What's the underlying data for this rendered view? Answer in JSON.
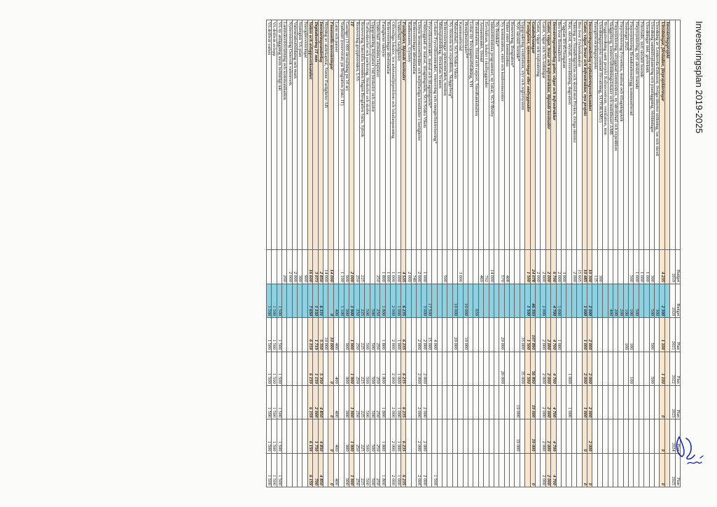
{
  "title": "Investeringsplan 2019-2025",
  "columns": [
    {
      "top": "",
      "bottom": ""
    },
    {
      "top": "Budget",
      "bottom": "2019"
    },
    {
      "top": "Budget",
      "bottom": "2020"
    },
    {
      "top": "Plan",
      "bottom": "2021"
    },
    {
      "top": "Plan",
      "bottom": "2022"
    },
    {
      "top": "Plan",
      "bottom": "2023"
    },
    {
      "top": "Plan",
      "bottom": "2024"
    },
    {
      "top": "Plan",
      "bottom": "2025"
    }
  ],
  "highlight_column": 2,
  "rows": [
    {
      "label": "Investeringsprojekt",
      "values": [
        "",
        "",
        "",
        "",
        "",
        "",
        ""
      ],
      "bold": true
    },
    {
      "label": "Utredningar, förstudier, förprojekteringar",
      "values": [
        "4 235",
        "2 300",
        "1 100",
        "1 100",
        "0",
        "0",
        "0"
      ],
      "bold": true
    },
    {
      "label": "Utredning av Lenhovda-Eriksson, övriga tätorter utökning, tas och skred",
      "values": [
        "",
        "300",
        "",
        "",
        "",
        "",
        ""
      ]
    },
    {
      "label": "Utredning samhällsplanering och planläggning, förtätningar",
      "values": [
        "300",
        "500",
        "500",
        "500",
        "",
        "",
        ""
      ]
    },
    {
      "label": "Utredningar inkl. geoteknik",
      "values": [
        "1 000",
        "",
        "",
        "",
        "",
        "",
        ""
      ]
    },
    {
      "label": "Förstudie, nytt särskilt boende",
      "values": [
        "1 000",
        "",
        "",
        "",
        "",
        "",
        ""
      ]
    },
    {
      "label": "Förprojektering, nytt särskilt boende",
      "values": [
        "1 000",
        "500",
        "",
        "",
        "",
        "",
        ""
      ]
    },
    {
      "label": "Förprojektering Brandstationsbygg kommunförråd",
      "values": [
        "500",
        "100",
        "100",
        "100",
        "",
        "",
        ""
      ]
    },
    {
      "label": "Stortorget 2025",
      "values": [
        "",
        "100",
        "100",
        "",
        "",
        "",
        ""
      ]
    },
    {
      "label": "Förprojektering Frysotikla, mattsal och tillagningskök",
      "values": [
        "",
        "200",
        "",
        "",
        "",
        "",
        ""
      ]
    },
    {
      "label": "Förprojektering, ullyggnad kommunhus, ny idrottshall och expedition",
      "values": [
        "",
        "200",
        "",
        "",
        "",
        "",
        ""
      ]
    },
    {
      "label": "Skäggeberg, kontors/utbildningslokaler och mobilhuset AME",
      "values": [
        "",
        "400",
        "",
        "",
        "",
        "",
        ""
      ]
    },
    {
      "label": "Bryggutredning samt projekt Kulturcentrum, ventilation, mm",
      "values": [
        "",
        "",
        "",
        "",
        "",
        "",
        ""
      ]
    },
    {
      "label": "Utredningsprojekt (samlad förvaltning, SUTORAMU)",
      "values": [
        "300",
        "",
        "",
        "",
        "",
        "",
        ""
      ]
    },
    {
      "label": "Energiförsörjningsprojekt",
      "values": [
        "135",
        "",
        "",
        "",
        "",
        "",
        ""
      ]
    },
    {
      "label": "Investeringsunderlag exploateringsverksamhet",
      "values": [
        "10 300",
        "2 000",
        "2 000",
        "2 000",
        "2 000",
        "2 000",
        "0"
      ],
      "bold": true
    },
    {
      "label": "Gator, vägar, broar och infrastruktur, nya projekt",
      "values": [
        "10 485",
        "1 000",
        "1 000",
        "2 000",
        "1 000",
        "0",
        "0"
      ],
      "bold": true
    },
    {
      "label": "Bro över Frykenkanalen",
      "values": [
        "15 605",
        "",
        "",
        "",
        "",
        "",
        ""
      ]
    },
    {
      "label": "Säkring av Strandvägen/fas och skred mot Fryken, övriga tätorter",
      "values": [
        "2 000",
        "",
        "",
        "",
        "",
        "",
        ""
      ]
    },
    {
      "label": "Ras, skred, skyfall, översvämning, dagvatten",
      "values": [
        "",
        "",
        "",
        "1 000",
        "1 000",
        "",
        ""
      ]
    },
    {
      "label": "Vägplan RV45/Storgatan",
      "values": [
        "3 000",
        "",
        "",
        "",
        "",
        "",
        ""
      ]
    },
    {
      "label": "Bro över Rottnaälven",
      "values": [
        "2 000",
        "1 000",
        "1 000",
        "",
        "",
        "",
        ""
      ]
    },
    {
      "label": "Investeringsunderlag gator, vägar och infrastruktur",
      "values": [
        "6 700",
        "4 700",
        "4 700",
        "4 700",
        "4 700",
        "4 700",
        "4 700"
      ],
      "bold": true
    },
    {
      "label": "Gator, vägar, broar och infrastruktur, löpande kostnader",
      "values": [
        "2 000",
        "",
        "2 000",
        "2 000",
        "2 000",
        "2 000",
        "2 000"
      ],
      "bold": true
    },
    {
      "label": "Gator, vägar och VA-ledningar",
      "values": [
        "2 000",
        "2 000",
        "2 000",
        "2 000",
        "2 000",
        "2 000",
        "2 000"
      ]
    },
    {
      "label": "Gator, vägar och exploatering",
      "values": [
        "2 000",
        "",
        "",
        "",
        "",
        "",
        ""
      ]
    },
    {
      "label": "Gatubelysningar",
      "values": [
        "24 078",
        "46 393",
        "107 890",
        "56 890",
        "19 000",
        "19 000",
        "0"
      ],
      "bold": true
    },
    {
      "label": "Fastigheter, nyinvesteringar eller ombyggnader",
      "values": [
        "1 500",
        "1 500",
        "1 500",
        "1 500",
        "",
        "",
        ""
      ],
      "bold": true
    },
    {
      "label": "Uppgradering ventilation, styr och reglersystem",
      "values": [
        "",
        "",
        "35 000",
        "35 000",
        "",
        "",
        ""
      ]
    },
    {
      "label": "Nytt särskilt boende*",
      "values": [
        "",
        "",
        "",
        "",
        "19 000",
        "19 000",
        ""
      ]
    },
    {
      "label": "Renovering, Broglatten*",
      "values": [
        "",
        "",
        "",
        "",
        "",
        "",
        ""
      ]
    },
    {
      "label": "Säker entré kommunhus",
      "values": [
        "408",
        "",
        "",
        "",
        "",
        "",
        ""
      ]
    },
    {
      "label": "Ny kommunhus, entré och konferenscenter",
      "values": [
        "570",
        "",
        "20 000",
        "20 000",
        "",
        "",
        ""
      ]
    },
    {
      "label": "Ny Bondsäs*",
      "values": [
        "",
        "",
        "",
        "",
        "",
        "",
        ""
      ]
    },
    {
      "label": "Industritekniska programmet, ny lokal, SGY/Broby",
      "values": [
        "14 000",
        "",
        "",
        "",
        "",
        "",
        ""
      ]
    },
    {
      "label": "Elevhälsan, lokaler i skolbyggnader",
      "values": [
        "792",
        "",
        "",
        "",
        "",
        "",
        ""
      ]
    },
    {
      "label": "Arenaområdet, förråd",
      "values": [
        "469",
        "",
        "",
        "",
        "",
        "",
        ""
      ]
    },
    {
      "label": "Brandstation, förråd och carport, Smedbankshallen",
      "values": [
        "",
        "650",
        "",
        "",
        "",
        "",
        ""
      ]
    },
    {
      "label": "Lokal för Tolvgagnsutbildning, YH",
      "values": [
        "",
        "",
        "",
        "",
        "",
        "",
        ""
      ]
    },
    {
      "label": "Hemtjänstlokaler**",
      "values": [
        "",
        "10 000",
        "10 000",
        "",
        "",
        "",
        ""
      ]
    },
    {
      "label": "Kommunförråd",
      "values": [
        "3 000",
        "",
        "",
        "",
        "",
        "",
        ""
      ]
    },
    {
      "label": "Matsalshall, SGY/Södra Viken",
      "values": [
        "",
        "10 000",
        "20 000",
        "",
        "",
        "",
        ""
      ]
    },
    {
      "label": "Ny förskola och expedition, Skäggeberg*",
      "values": [
        "",
        "",
        "",
        "",
        "",
        "",
        ""
      ]
    },
    {
      "label": "Reinvesteringar sphemområden, motion",
      "values": [
        "500",
        "",
        "",
        "",
        "",
        "",
        ""
      ]
    },
    {
      "label": "Mötesplatsbidrag, förskolan Svanen",
      "values": [
        "",
        "",
        "",
        "",
        "",
        "",
        ""
      ]
    },
    {
      "label": "Lokaler Frycelikseområdet, renovering och energieffektivisering*",
      "values": [
        "",
        "",
        "4 000",
        "",
        "",
        "",
        "1 500"
      ]
    },
    {
      "label": "Frycelikseområdet, matsal och tillagningskök*",
      "values": [
        "",
        "17 500",
        "15 000",
        "",
        "",
        "",
        ""
      ]
    },
    {
      "label": "Ombyggnad av matsal, tillagningskök, SGY/Södra Viken",
      "values": [
        "1 000",
        "3 000",
        "2 000",
        "2 000",
        "2 000",
        "2 000",
        "2 000"
      ]
    },
    {
      "label": "Utbyte bromsomfördäm och miljöfarliga kemikalier i fastigheter",
      "values": [
        "2 000",
        "",
        "2 000",
        "2 000",
        "2 000",
        "2 000",
        "2 000"
      ]
    },
    {
      "label": "Reinvesteringar idrottshallar",
      "values": [
        "749",
        "",
        "",
        "",
        "",
        "",
        ""
      ]
    },
    {
      "label": "Rådhussalen, Gylleby",
      "values": [
        "2 000",
        "",
        "",
        "",
        "",
        "",
        ""
      ]
    },
    {
      "label": "Fastigheter, löpande kostnader",
      "values": [
        "4 535",
        "6 235",
        "6 235",
        "6 235",
        "6 235",
        "6 235",
        "6 235"
      ],
      "bold": true
    },
    {
      "label": "Underhåll fastigheter",
      "values": [
        "1 000",
        "1 000",
        "1 000",
        "1 000",
        "1 000",
        "1 000",
        "1 000"
      ]
    },
    {
      "label": "Offentliga lokaler, tex arbetsmiljöproblem och lokalanpassning",
      "values": [
        "1 000",
        "2 000",
        "2 000",
        "2 000",
        "2 000",
        "2 000",
        "2 000"
      ]
    },
    {
      "label": "Reinvesteringar idrottshallar",
      "values": [
        "1 000",
        "",
        "",
        "",
        "",
        "",
        ""
      ]
    },
    {
      "label": "Fastigheter takbyte",
      "values": [
        "1 800",
        "1 800",
        "1 800",
        "1 800",
        "1 800",
        "1 800",
        "1 800"
      ]
    },
    {
      "label": "Underhåll allmänna lekplatser",
      "values": [
        "250",
        "250",
        "250",
        "250",
        "250",
        "250",
        "250"
      ]
    },
    {
      "label": "Uppgradering lekplatser vid förskolor och skolor",
      "values": [
        "",
        "500",
        "500",
        "500",
        "500",
        "500",
        "500"
      ]
    },
    {
      "label": "Trafiksäkerhet och parkering, förskolor och skolor",
      "values": [
        "",
        "500",
        "500",
        "500",
        "500",
        "500",
        "500"
      ]
    },
    {
      "label": "Renovering Såkekilla boenden Hagen Broglatten Sälla, Sjövik",
      "values": [
        "225",
        "225",
        "225",
        "225",
        "225",
        "225",
        "225"
      ]
    },
    {
      "label": "Renovering gruppboenden, LSS",
      "values": [
        "250",
        "250",
        "250",
        "250",
        "250",
        "250",
        "250"
      ]
    },
    {
      "label": "IT",
      "values": [
        "2 000",
        "1 900",
        "1 900",
        "1 900",
        "1 900",
        "1 900",
        "1 900"
      ],
      "bold": true
    },
    {
      "label": "Gasläget (3 000 lärstallning på 10 år)",
      "values": [
        "900",
        "900",
        "900",
        "900",
        "900",
        "900",
        "900"
      ]
    },
    {
      "label": "Stadsnätt (reserverats på Broglatten (inkl. IT)",
      "values": [
        "1 100",
        "1 100",
        "",
        "",
        "",
        "",
        ""
      ]
    },
    {
      "label": "Larm och passer",
      "values": [
        "",
        "400",
        "400",
        "400",
        "400",
        "400",
        "400"
      ]
    },
    {
      "label": "Finansiella investeringar",
      "values": [
        "14 000",
        "0",
        "10 000",
        "0",
        "0",
        "0",
        "0"
      ],
      "bold": true
    },
    {
      "label": "Höjning av aktiekapital, Sunne Fastigheter AB",
      "values": [
        "14 000",
        "",
        "10 000",
        "",
        "",
        "",
        ""
      ]
    },
    {
      "label": "Investeringsunderlag",
      "values": [
        "2 850",
        "6 331",
        "5 350",
        "5 350",
        "4 850",
        "4 850",
        "4 850"
      ],
      "bold": true
    },
    {
      "label": "Digitalisering IT mm",
      "values": [
        "3 073",
        "1 150",
        "1 719",
        "1 159",
        "2 000",
        "1 750",
        "700"
      ],
      "bold": true
    },
    {
      "label": "Vatten och avloppsverksamhet",
      "values": [
        "16 600",
        "7 650",
        "6 159",
        "6 159",
        "6 159",
        "6 159",
        "6 159"
      ],
      "bold": true
    },
    {
      "label": "Energiinvesteringar",
      "values": [
        "900",
        "",
        "",
        "",
        "",
        "",
        ""
      ]
    },
    {
      "label": "Strategisk VA-plan",
      "values": [
        "300",
        "",
        "",
        "",
        "",
        "",
        ""
      ]
    },
    {
      "label": "Vattenrådsutbildning och mark",
      "values": [
        "2 000",
        "",
        "",
        "",
        "",
        "",
        ""
      ]
    },
    {
      "label": "Nyinvestering Östervik vattenverk",
      "values": [
        "2 000",
        "",
        "",
        "",
        "",
        "",
        ""
      ]
    },
    {
      "label": "Lantmäteriförrättning och kommunikation",
      "values": [
        "200",
        "",
        "",
        "",
        "",
        "",
        ""
      ]
    },
    {
      "label": "VA ny anläggning inom befintligt nät",
      "values": [
        "",
        "1 500",
        "1 500",
        "1 500",
        "1 500",
        "1 500",
        "1 500"
      ]
    },
    {
      "label": "VA driftvåt avlopp",
      "values": [
        "",
        "1 500",
        "1 500",
        "1 500",
        "1 500",
        "1 500",
        "1 500"
      ]
    },
    {
      "label": "VA driftvåt vatten",
      "values": [
        "",
        "1 500",
        "1 500",
        "1 500",
        "1 500",
        "1 500",
        "1 500"
      ]
    }
  ]
}
